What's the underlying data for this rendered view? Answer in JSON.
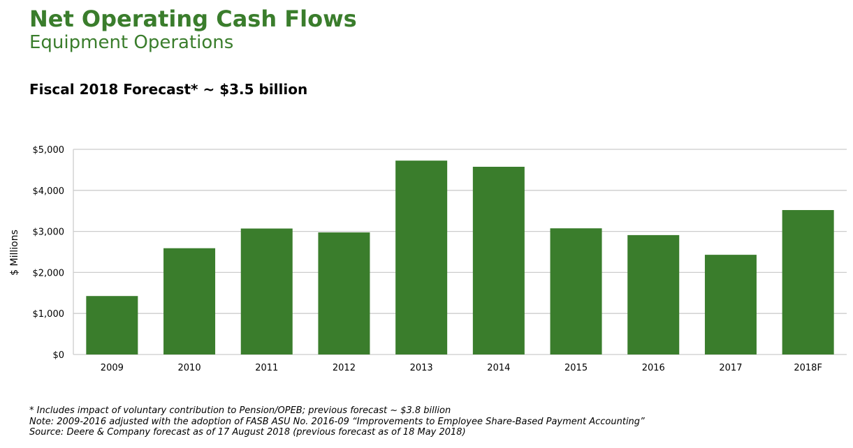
{
  "header": {
    "title": "Net Operating Cash Flows",
    "subtitle": "Equipment Operations",
    "headline": "Fiscal 2018 Forecast* ~ $3.5 billion"
  },
  "chart_data": {
    "type": "bar",
    "categories": [
      "2009",
      "2010",
      "2011",
      "2012",
      "2013",
      "2014",
      "2015",
      "2016",
      "2017",
      "2018F"
    ],
    "values": [
      1425,
      2590,
      3070,
      2975,
      4725,
      4575,
      3075,
      2910,
      2430,
      3520
    ],
    "ylabel": "$ Millions",
    "ylim": [
      0,
      5000
    ],
    "yticks": [
      0,
      1000,
      2000,
      3000,
      4000,
      5000
    ],
    "ytick_labels": [
      "$0",
      "$1,000",
      "$2,000",
      "$3,000",
      "$4,000",
      "$5,000"
    ],
    "grid": true,
    "bar_color": "#3a7d2c",
    "grid_color": "#cccccc"
  },
  "footnotes": [
    "* Includes impact of voluntary contribution to Pension/OPEB; previous forecast ~ $3.8 billion",
    "Note: 2009-2016 adjusted with the adoption of FASB ASU No. 2016-09 “Improvements to Employee Share-Based Payment Accounting”",
    "Source: Deere & Company forecast as of 17 August 2018 (previous forecast as of 18 May 2018)"
  ]
}
